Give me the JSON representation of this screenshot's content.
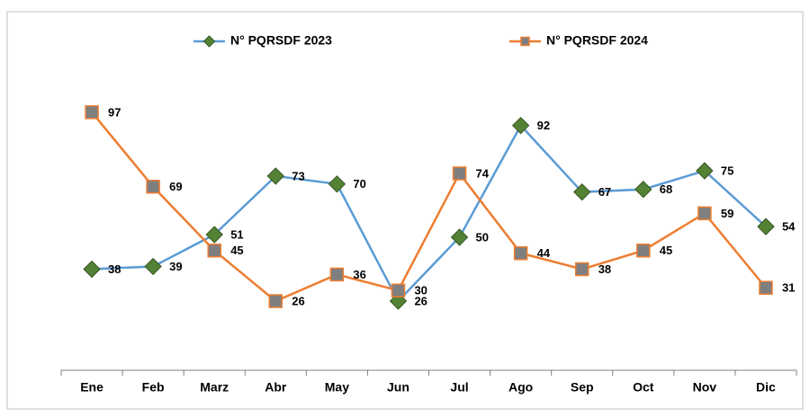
{
  "chart_data": {
    "type": "line",
    "categories": [
      "Ene",
      "Feb",
      "Marz",
      "Abr",
      "May",
      "Jun",
      "Jul",
      "Ago",
      "Sep",
      "Oct",
      "Nov",
      "Dic"
    ],
    "series": [
      {
        "name": "N° PQRSDF 2023",
        "color": "#5b9bd5",
        "marker": "diamond",
        "marker_color": "#548235",
        "values": [
          38,
          39,
          51,
          73,
          70,
          26,
          50,
          92,
          67,
          68,
          75,
          54
        ]
      },
      {
        "name": "N° PQRSDF 2024",
        "color": "#ed7d31",
        "marker": "square",
        "marker_color": "#7f7f7f",
        "values": [
          97,
          69,
          45,
          26,
          36,
          30,
          74,
          44,
          38,
          45,
          59,
          31
        ]
      }
    ],
    "ylim": [
      0,
      125
    ],
    "legend": "top",
    "data_labels": true
  }
}
